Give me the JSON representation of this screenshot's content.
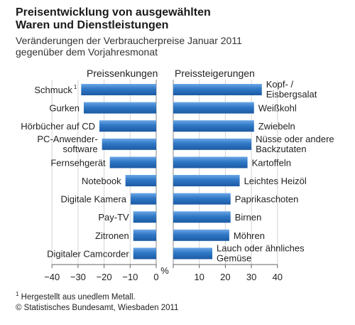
{
  "chart_data": {
    "type": "bar",
    "title": [
      "Preisentwicklung von ausgewählten",
      "Waren und Dienstleistungen"
    ],
    "subtitle": [
      "Veränderungen der Verbraucherpreise Januar 2011",
      "gegenüber dem Vorjahresmonat"
    ],
    "panels": {
      "left_header": "Preissenkungen",
      "right_header": "Preissteigerungen"
    },
    "unit": "%",
    "xlim": [
      -40,
      40
    ],
    "xticks": [
      "−40",
      "−30",
      "−20",
      "−10",
      "0",
      "10",
      "20",
      "30",
      "40"
    ],
    "decreases": [
      {
        "label": [
          "Schmuck"
        ],
        "superscript": "1",
        "value": -28.8
      },
      {
        "label": [
          "Gurken"
        ],
        "value": -27.8
      },
      {
        "label": [
          "Hörbücher auf CD"
        ],
        "value": -21.8
      },
      {
        "label": [
          "PC-Anwender-",
          "software"
        ],
        "value": -20.8
      },
      {
        "label": [
          "Fernsehgerät"
        ],
        "value": -17.8
      },
      {
        "label": [
          "Notebook"
        ],
        "value": -11.8
      },
      {
        "label": [
          "Digitale Kamera"
        ],
        "value": -9.8
      },
      {
        "label": [
          "Pay-TV"
        ],
        "value": -8.8
      },
      {
        "label": [
          "Zitronen"
        ],
        "value": -8.8
      },
      {
        "label": [
          "Digitaler Camcorder"
        ],
        "value": -8.8
      }
    ],
    "increases": [
      {
        "label": [
          "Kopf- /",
          "Eisbergsalat"
        ],
        "value": 34
      },
      {
        "label": [
          "Weißkohl"
        ],
        "value": 31
      },
      {
        "label": [
          "Zwiebeln"
        ],
        "value": 31
      },
      {
        "label": [
          "Nüsse oder andere",
          "Backzutaten"
        ],
        "value": 30
      },
      {
        "label": [
          "Kartoffeln"
        ],
        "value": 28.5
      },
      {
        "label": [
          "Leichtes Heizöl"
        ],
        "value": 25.5
      },
      {
        "label": [
          "Paprikaschoten"
        ],
        "value": 22
      },
      {
        "label": [
          "Birnen"
        ],
        "value": 22
      },
      {
        "label": [
          "Möhren"
        ],
        "value": 21.5
      },
      {
        "label": [
          "Lauch oder ähnliches",
          "Gemüse"
        ],
        "value": 15
      }
    ],
    "colors": {
      "bar": "#2f77c5",
      "bar_light": "#6aa6e6",
      "bar_edge": "#1c5aa3",
      "grid": "#d4d4d4"
    },
    "grid": true
  },
  "footnotes": {
    "note_1_marker": "1",
    "note_1_text": "Hergestellt aus unedlem Metall.",
    "source": "© Statistisches Bundesamt, Wiesbaden 2011"
  }
}
